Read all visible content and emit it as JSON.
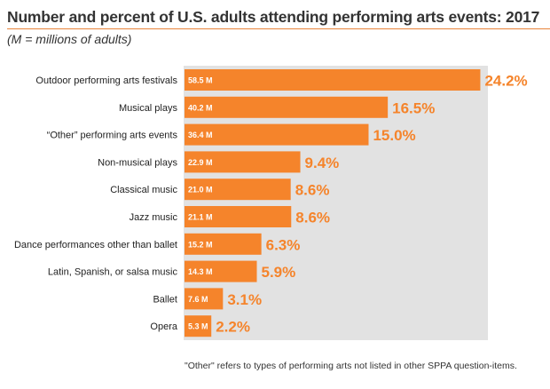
{
  "header": {
    "title": "Number and percent of U.S. adults attending performing arts events: 2017",
    "subtitle": "(M = millions of adults)"
  },
  "footnote": "\"Other\" refers to types of performing arts not listed in other SPPA question-items.",
  "colors": {
    "bar": "#f5842b",
    "percent_text": "#f5842b",
    "plot_background": "#e2e2e2",
    "title_rule": "#e8833a"
  },
  "chart_data": {
    "type": "bar",
    "orientation": "horizontal",
    "categories": [
      "Outdoor performing arts festivals",
      "Musical plays",
      "“Other” performing arts events",
      "Non-musical plays",
      "Classical music",
      "Jazz music",
      "Dance performances other than ballet",
      "Latin, Spanish, or salsa music",
      "Ballet",
      "Opera"
    ],
    "series": [
      {
        "values": [
          58.5,
          40.2,
          36.4,
          22.9,
          21.0,
          21.1,
          15.2,
          14.3,
          7.6,
          5.3
        ],
        "value_labels": [
          "58.5 M",
          "40.2 M",
          "36.4 M",
          "22.9 M",
          "21.0 M",
          "21.1 M",
          "15.2 M",
          "14.3 M",
          "7.6 M",
          "5.3 M"
        ],
        "percent_labels": [
          "24.2%",
          "16.5%",
          "15.0%",
          "9.4%",
          "8.6%",
          "8.6%",
          "6.3%",
          "5.9%",
          "3.1%",
          "2.2%"
        ]
      }
    ],
    "xlim": [
      0,
      70
    ],
    "grid": false,
    "legend": "none"
  }
}
